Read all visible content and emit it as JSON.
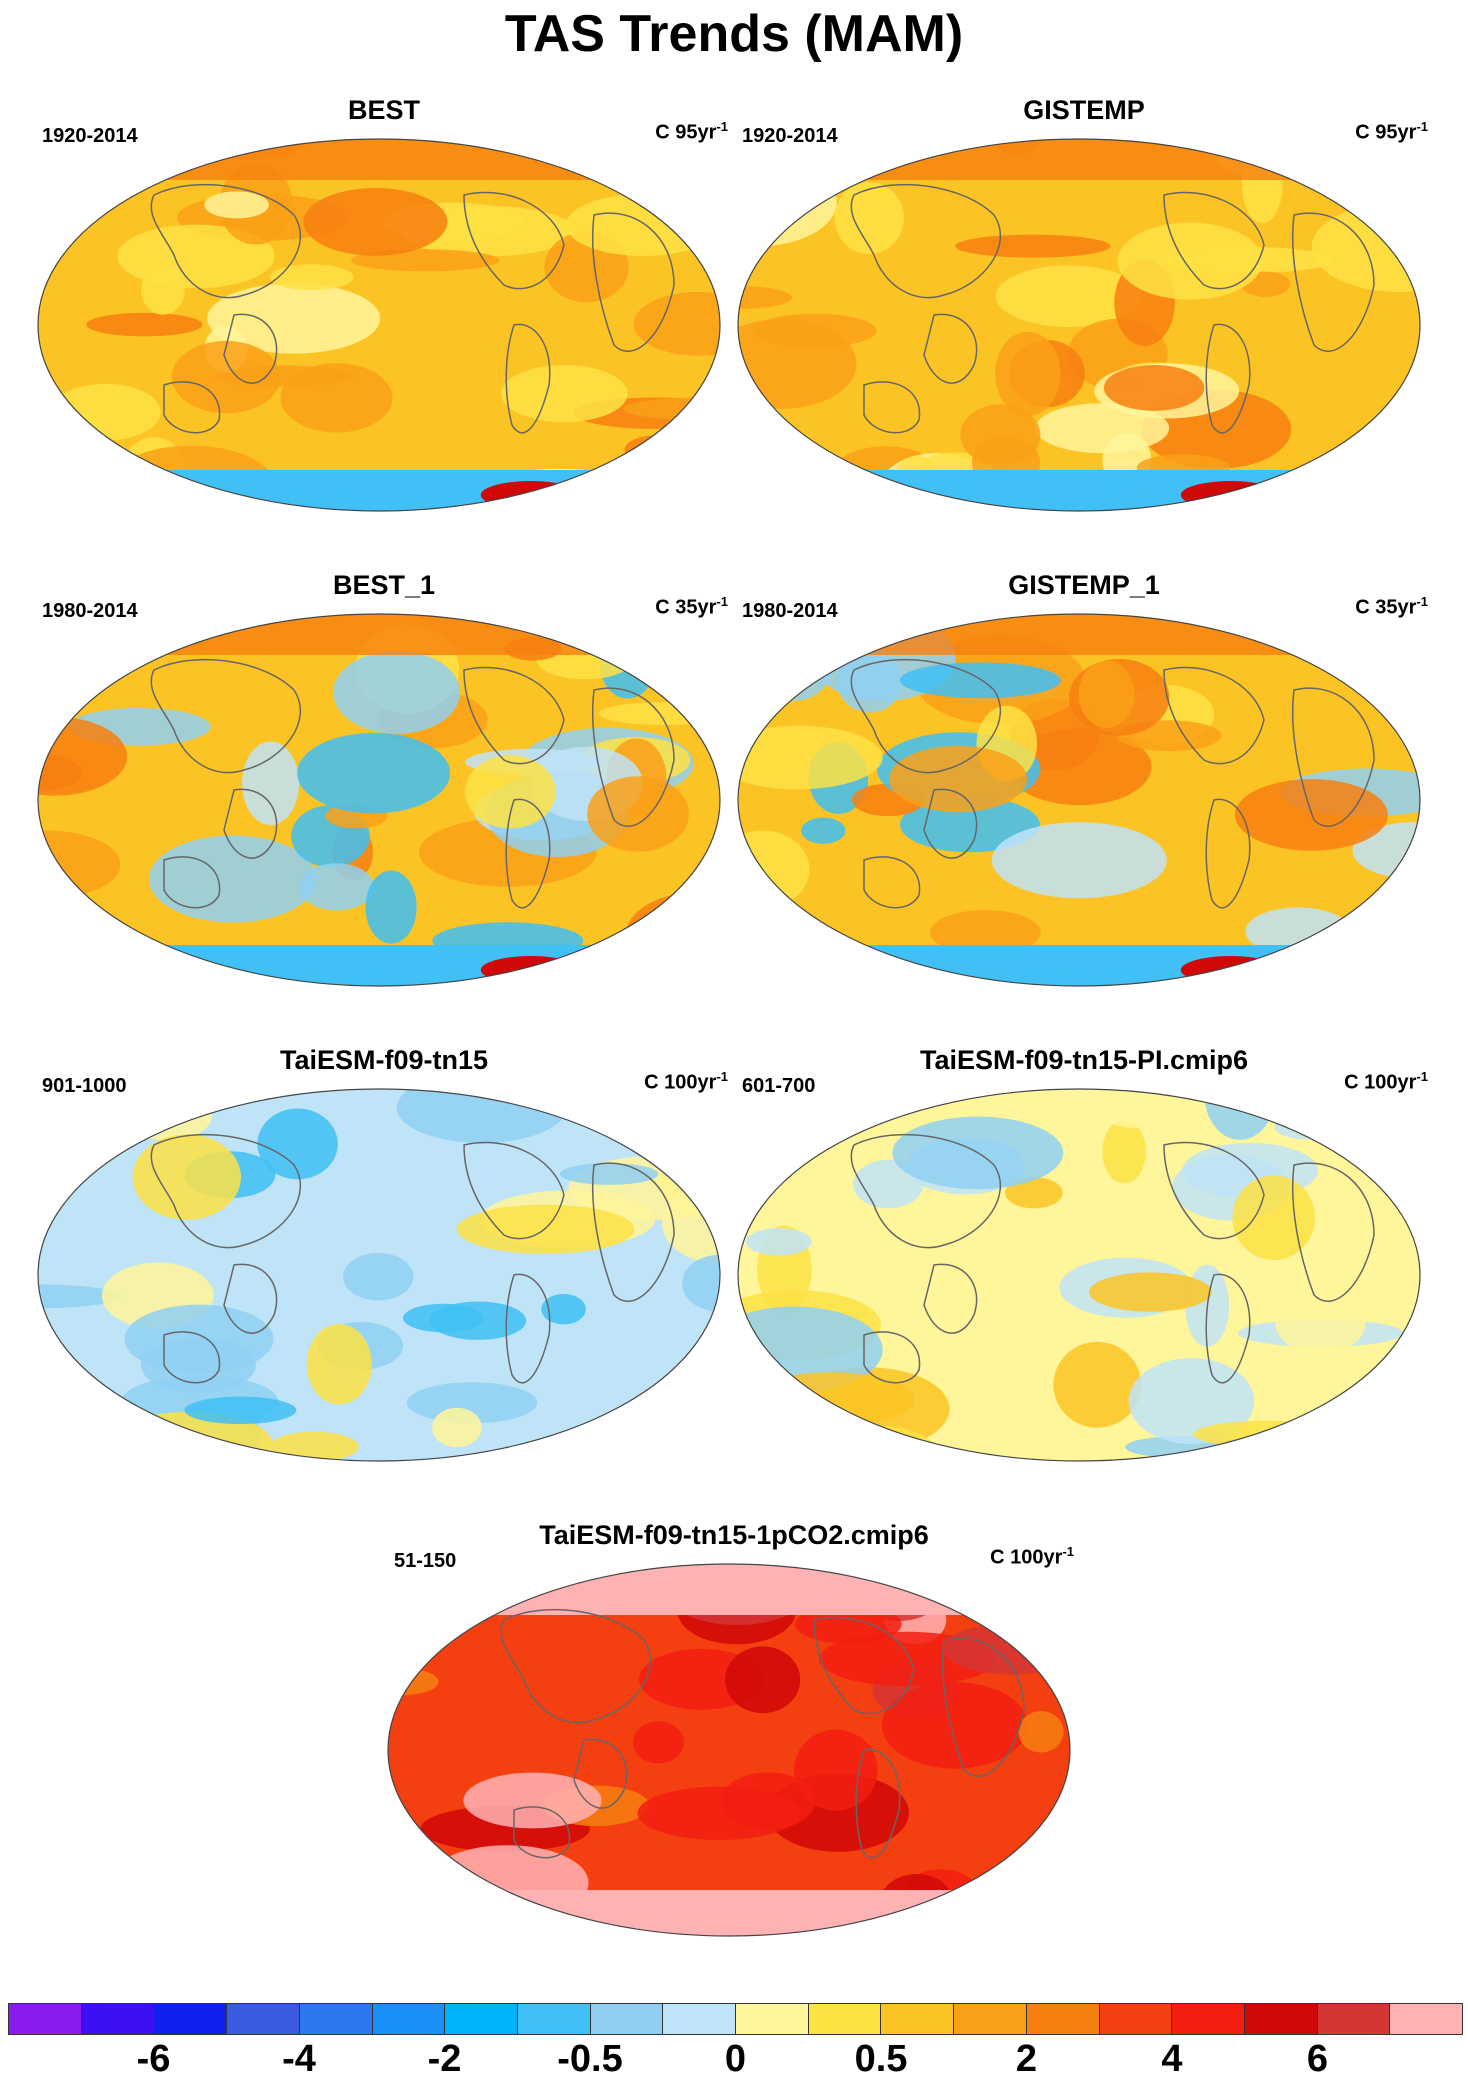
{
  "title": "TAS Trends (MAM)",
  "panels": [
    {
      "name": "BEST",
      "period": "1920-2014",
      "units": "C 95yr",
      "units_exp": "-1",
      "pattern": "warm-obs-long"
    },
    {
      "name": "GISTEMP",
      "period": "1920-2014",
      "units": "C 95yr",
      "units_exp": "-1",
      "pattern": "warm-obs-long"
    },
    {
      "name": "BEST_1",
      "period": "1980-2014",
      "units": "C 35yr",
      "units_exp": "-1",
      "pattern": "warm-obs-short"
    },
    {
      "name": "GISTEMP_1",
      "period": "1980-2014",
      "units": "C 35yr",
      "units_exp": "-1",
      "pattern": "warm-obs-short"
    },
    {
      "name": "TaiESM-f09-tn15",
      "period": "901-1000",
      "units": "C 100yr",
      "units_exp": "-1",
      "pattern": "control-cool"
    },
    {
      "name": "TaiESM-f09-tn15-PI.cmip6",
      "period": "601-700",
      "units": "C 100yr",
      "units_exp": "-1",
      "pattern": "control-neutral"
    },
    {
      "name": "TaiESM-f09-tn15-1pCO2.cmip6",
      "period": "51-150",
      "units": "C 100yr",
      "units_exp": "-1",
      "pattern": "hot"
    }
  ],
  "colorbar": {
    "colors": [
      "#8b1cf0",
      "#3d0ff5",
      "#1020f0",
      "#3a5ae0",
      "#2d78ee",
      "#1a8ff7",
      "#00b2f7",
      "#40c0f5",
      "#8fd0f2",
      "#bfe3f7",
      "#fff59a",
      "#fde244",
      "#fbc424",
      "#faa018",
      "#f77f10",
      "#f44010",
      "#f31d10",
      "#d00808",
      "#d43535",
      "#ffb2b4"
    ],
    "labels": [
      "-6",
      "-4",
      "-2",
      "-0.5",
      "0",
      "0.5",
      "2",
      "4",
      "6"
    ]
  }
}
